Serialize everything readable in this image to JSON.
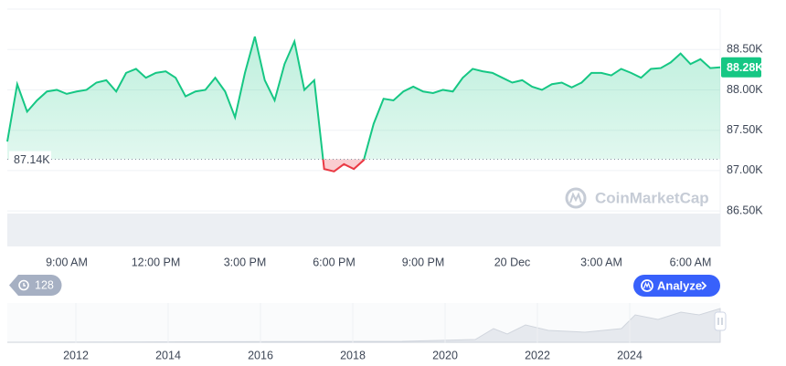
{
  "chart_data": {
    "type": "line",
    "categories": [
      null,
      null,
      null,
      null,
      null,
      null,
      "9:00 AM",
      null,
      null,
      null,
      null,
      null,
      null,
      null,
      null,
      "12:00 PM",
      null,
      null,
      null,
      null,
      null,
      null,
      null,
      null,
      "3:00 PM",
      null,
      null,
      null,
      null,
      null,
      null,
      null,
      null,
      "6:00 PM",
      null,
      null,
      null,
      null,
      null,
      null,
      null,
      null,
      "9:00 PM",
      null,
      null,
      null,
      null,
      null,
      null,
      null,
      null,
      "20 Dec",
      null,
      null,
      null,
      null,
      null,
      null,
      null,
      null,
      "3:00 AM",
      null,
      null,
      null,
      null,
      null,
      null,
      null,
      null,
      "6:00 AM",
      null,
      null,
      null
    ],
    "values": [
      87360,
      88070,
      87730,
      87870,
      87980,
      88000,
      87950,
      87980,
      88000,
      88090,
      88120,
      87980,
      88210,
      88260,
      88150,
      88210,
      88230,
      88150,
      87920,
      87980,
      88000,
      88150,
      87980,
      87660,
      88210,
      88660,
      88120,
      87870,
      88320,
      88600,
      88000,
      88120,
      87020,
      86990,
      87080,
      87020,
      87130,
      87580,
      87890,
      87870,
      87980,
      88040,
      87980,
      87960,
      88000,
      87980,
      88150,
      88260,
      88230,
      88210,
      88150,
      88090,
      88120,
      88040,
      88000,
      88070,
      88090,
      88030,
      88090,
      88210,
      88210,
      88180,
      88260,
      88210,
      88150,
      88260,
      88270,
      88340,
      88450,
      88320,
      88380,
      88270,
      88280
    ],
    "color": "#16c784",
    "down_color": "#ea3943",
    "ylim": [
      86400,
      89000
    ],
    "yticks": [
      {
        "value": 86500,
        "label": "86.50K"
      },
      {
        "value": 87000,
        "label": "87.00K"
      },
      {
        "value": 87500,
        "label": "87.50K"
      },
      {
        "value": 88000,
        "label": "88.00K"
      },
      {
        "value": 88500,
        "label": "88.50K"
      }
    ],
    "grid": true,
    "baseline": {
      "value": 87140,
      "label": "87.14K"
    },
    "current_price": {
      "value": 88280,
      "label": "88.28K"
    }
  },
  "watermark": "CoinMarketCap",
  "history_badge": "128",
  "analyze_button": "Analyze",
  "navigator": {
    "labels": [
      "2012",
      "2014",
      "2016",
      "2018",
      "2020",
      "2022",
      "2024"
    ]
  }
}
